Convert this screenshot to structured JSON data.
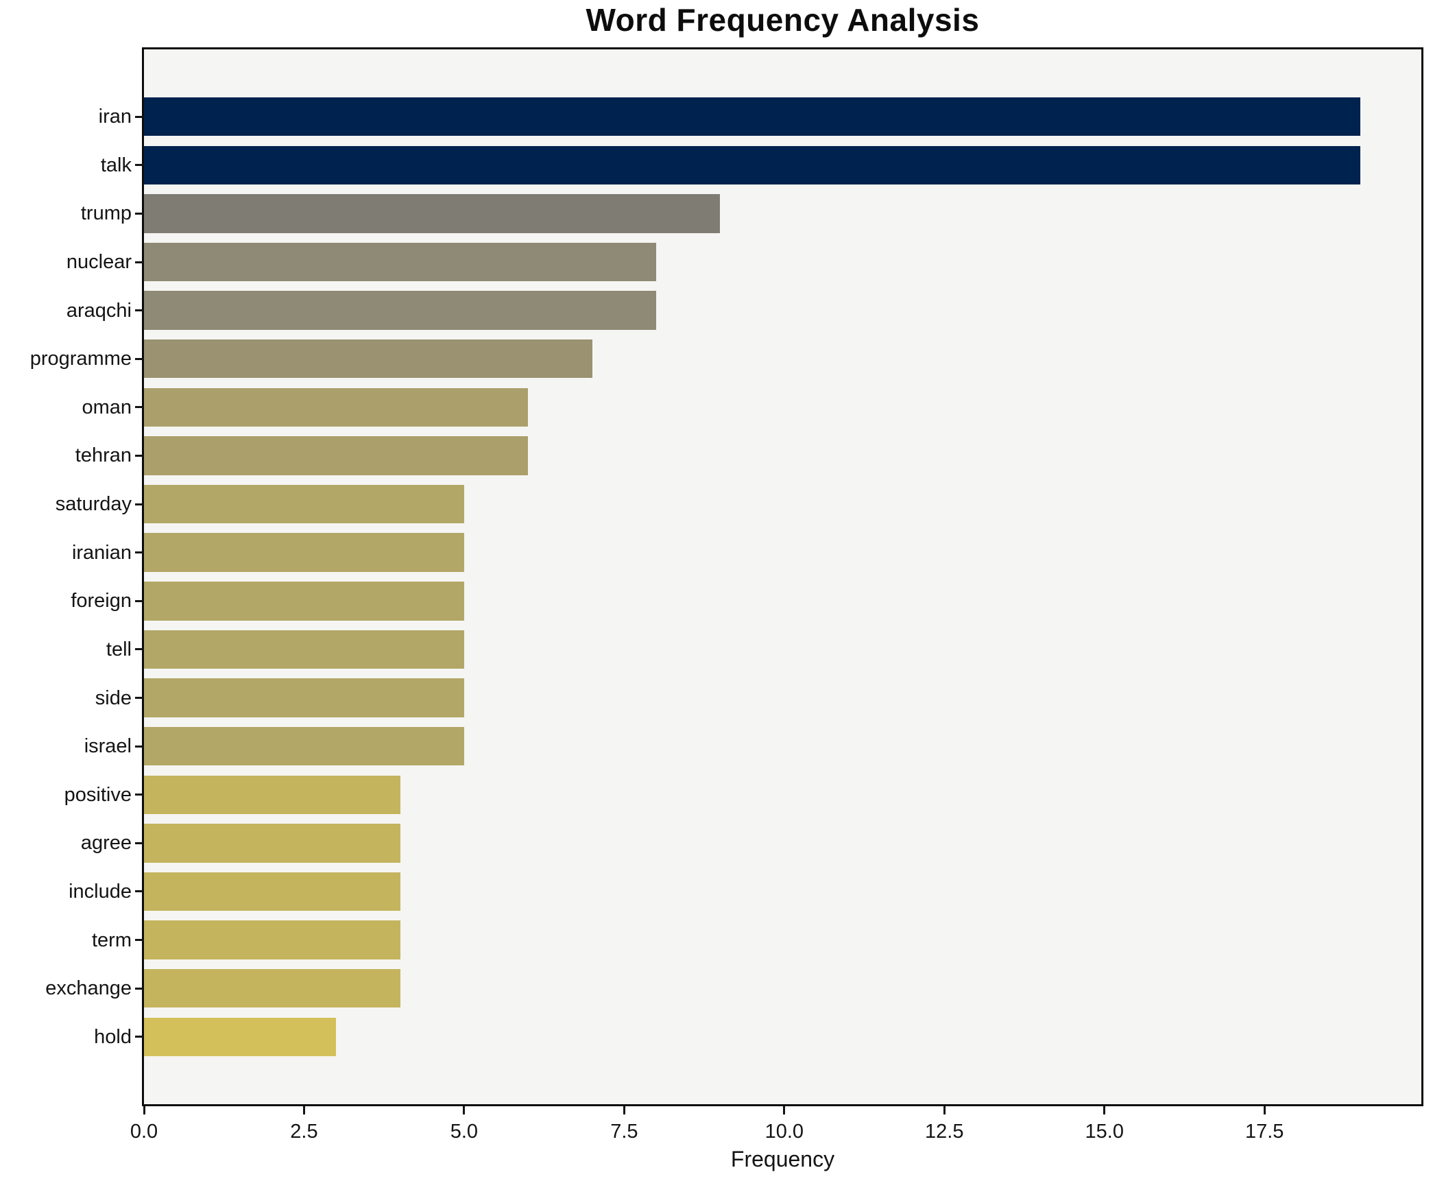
{
  "title": "Word Frequency Analysis",
  "xlabel": "Frequency",
  "chart_data": {
    "type": "bar",
    "orientation": "horizontal",
    "title": "Word Frequency Analysis",
    "xlabel": "Frequency",
    "ylabel": "",
    "categories": [
      "iran",
      "talk",
      "trump",
      "nuclear",
      "araqchi",
      "programme",
      "oman",
      "tehran",
      "saturday",
      "iranian",
      "foreign",
      "tell",
      "side",
      "israel",
      "positive",
      "agree",
      "include",
      "term",
      "exchange",
      "hold"
    ],
    "values": [
      19,
      19,
      9,
      8,
      8,
      7,
      6,
      6,
      5,
      5,
      5,
      5,
      5,
      5,
      4,
      4,
      4,
      4,
      4,
      3
    ],
    "bar_colors": [
      "#00224e",
      "#00224e",
      "#7f7d73",
      "#8e8a75",
      "#8e8a75",
      "#9a9270",
      "#ab9f6c",
      "#ab9f6c",
      "#b3a767",
      "#b3a767",
      "#b3a767",
      "#b3a767",
      "#b3a767",
      "#b3a767",
      "#c5b45e",
      "#c5b45e",
      "#c5b45e",
      "#c5b45e",
      "#c5b45e",
      "#d3c05a"
    ],
    "xlim": [
      0,
      19.95
    ],
    "xtick_values": [
      0,
      2.5,
      5,
      7.5,
      10,
      12.5,
      15,
      17.5
    ],
    "xtick_labels": [
      "0.0",
      "2.5",
      "5.0",
      "7.5",
      "10.0",
      "12.5",
      "15.0",
      "17.5"
    ],
    "grid": false,
    "legend": false,
    "plot_background": "#f5f5f3",
    "figure_background": "#ffffff",
    "spine_color": "#0d0d0d",
    "text_color": "#141414"
  }
}
